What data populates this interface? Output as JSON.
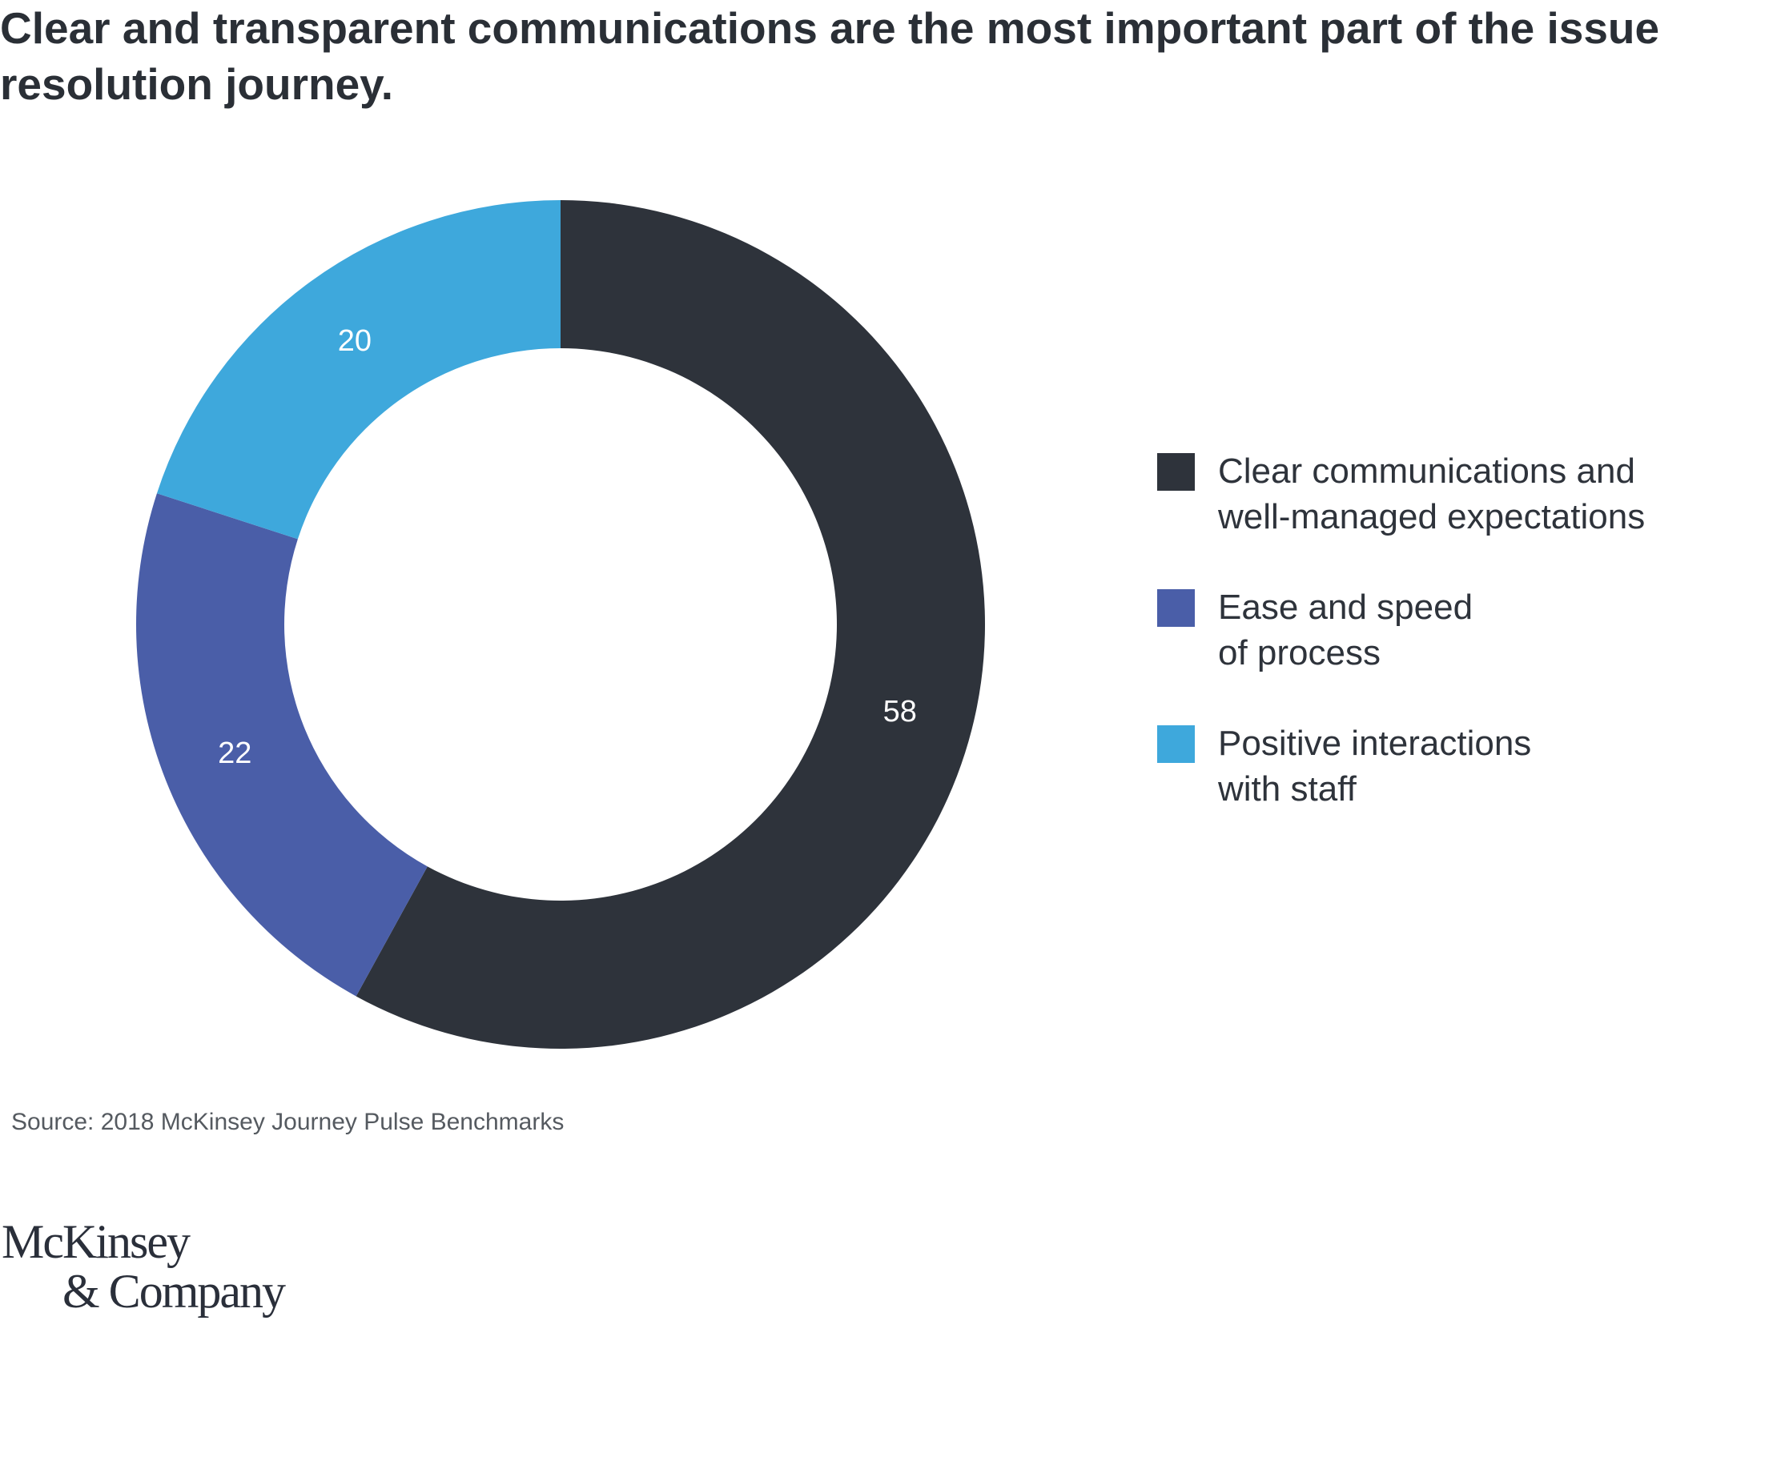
{
  "title": "Clear and transparent communications are the most important part of the issue resolution journey.",
  "source": "Source: 2018 McKinsey Journey Pulse Benchmarks",
  "logo": {
    "line1": "McKinsey",
    "line2": "& Company"
  },
  "legend": {
    "items": [
      {
        "line1": "Clear communications and",
        "line2": "well-managed expectations",
        "color": "#2e333b"
      },
      {
        "line1": "Ease and speed",
        "line2": "of process",
        "color": "#4a5ea8"
      },
      {
        "line1": "Positive interactions",
        "line2": "with staff",
        "color": "#3ea8dc"
      }
    ]
  },
  "chart_data": {
    "type": "pie",
    "variant": "donut",
    "title": "Clear and transparent communications are the most important part of the issue resolution journey.",
    "categories": [
      "Clear communications and well-managed expectations",
      "Ease and speed of process",
      "Positive interactions with staff"
    ],
    "values": [
      58,
      22,
      20
    ],
    "colors": [
      "#2e333b",
      "#4a5ea8",
      "#3ea8dc"
    ],
    "start_angle_deg": 0,
    "direction": "clockwise",
    "legend_position": "right"
  }
}
